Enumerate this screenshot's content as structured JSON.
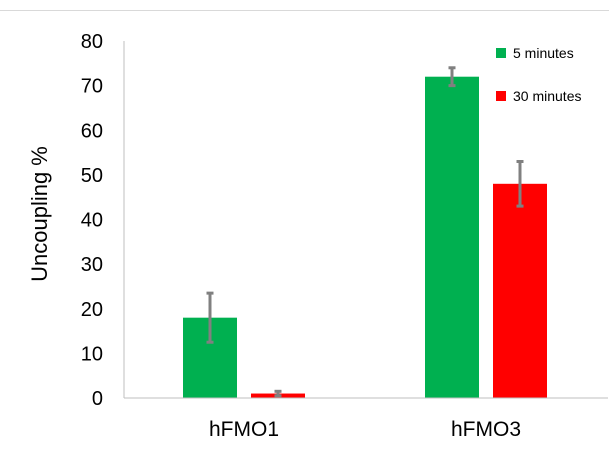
{
  "chart_data": {
    "type": "bar",
    "categories": [
      "hFMO1",
      "hFMO3"
    ],
    "series": [
      {
        "name": "5 minutes",
        "color": "#00b050",
        "values": [
          18,
          72
        ],
        "errors": [
          5.5,
          2
        ]
      },
      {
        "name": "30 minutes",
        "color": "#ff0000",
        "values": [
          1,
          48
        ],
        "errors": [
          0.5,
          5
        ]
      }
    ],
    "title": "",
    "xlabel": "",
    "ylabel": "Uncoupling %",
    "ylim": [
      0,
      80
    ],
    "yticks": [
      0,
      10,
      20,
      30,
      40,
      50,
      60,
      70,
      80
    ],
    "error_bar_color": "#808080",
    "grid": false,
    "legend_position": "top-right"
  }
}
